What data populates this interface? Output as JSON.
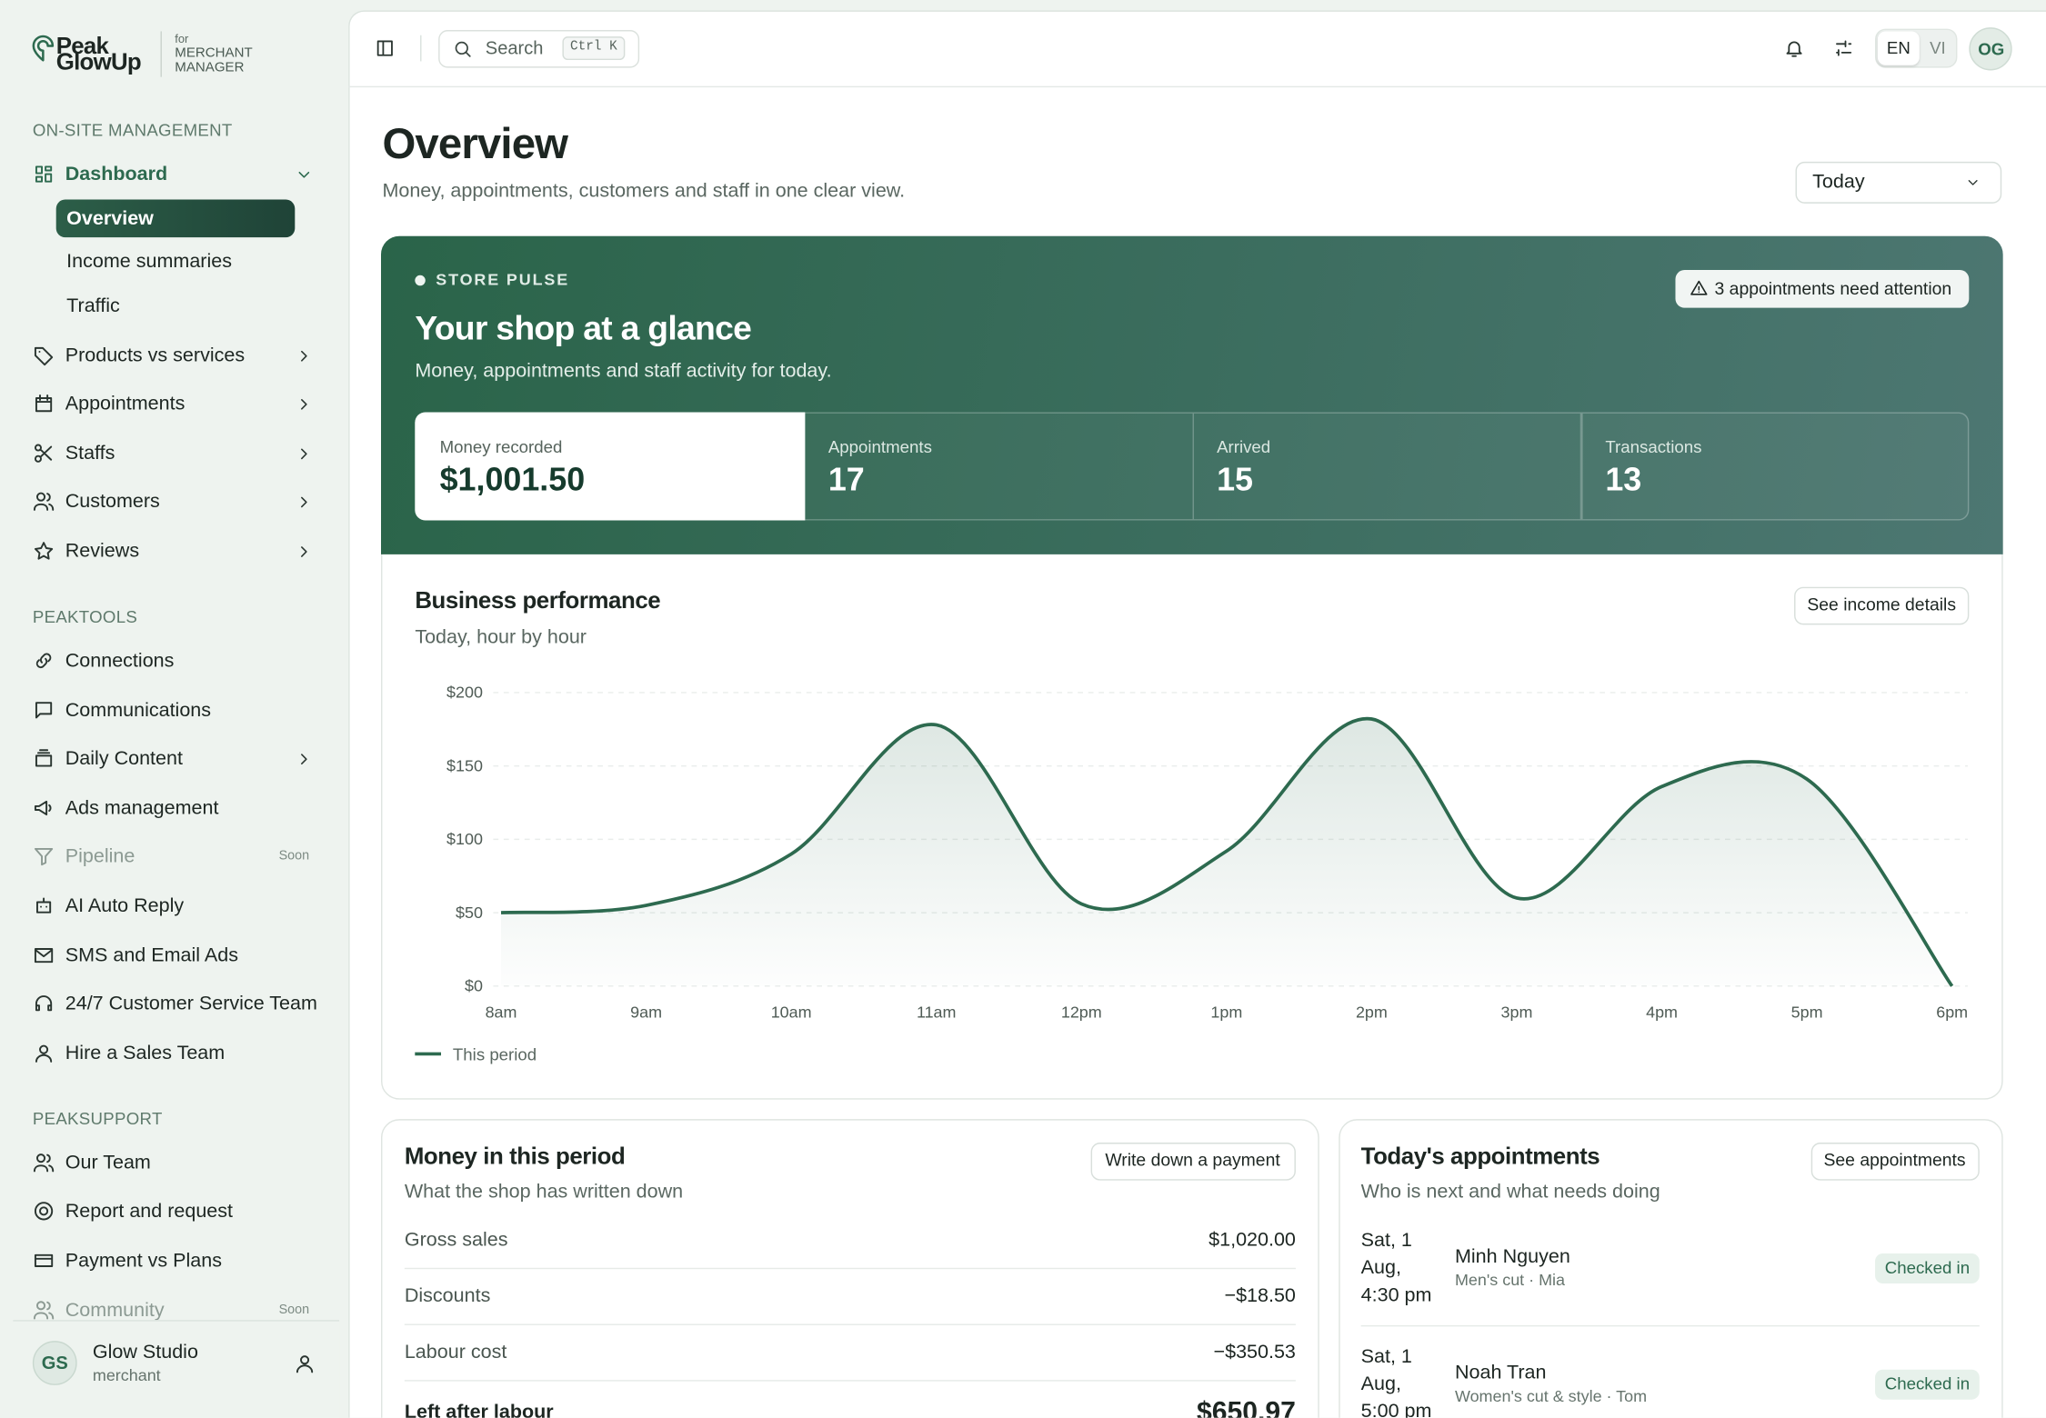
{
  "brand": {
    "line1": "Peak",
    "line2": "GlowUp",
    "for": "for",
    "role_line1": "MERCHANT",
    "role_line2": "MANAGER"
  },
  "sidebar": {
    "sections": [
      {
        "title": "ON-SITE MANAGEMENT",
        "items": [
          {
            "label": "Dashboard",
            "expanded": true,
            "active": true,
            "children": [
              {
                "label": "Overview",
                "active": true
              },
              {
                "label": "Income summaries"
              },
              {
                "label": "Traffic"
              }
            ]
          },
          {
            "label": "Products vs services",
            "expandable": true
          },
          {
            "label": "Appointments",
            "expandable": true
          },
          {
            "label": "Staffs",
            "expandable": true
          },
          {
            "label": "Customers",
            "expandable": true
          },
          {
            "label": "Reviews",
            "expandable": true
          }
        ]
      },
      {
        "title": "PEAKTOOLS",
        "items": [
          {
            "label": "Connections"
          },
          {
            "label": "Communications"
          },
          {
            "label": "Daily Content",
            "expandable": true
          },
          {
            "label": "Ads management"
          },
          {
            "label": "Pipeline",
            "badge": "Soon",
            "disabled": true
          },
          {
            "label": "AI Auto Reply"
          },
          {
            "label": "SMS and Email Ads"
          },
          {
            "label": "24/7 Customer Service Team"
          },
          {
            "label": "Hire a Sales Team"
          }
        ]
      },
      {
        "title": "PEAKSUPPORT",
        "items": [
          {
            "label": "Our Team"
          },
          {
            "label": "Report and request"
          },
          {
            "label": "Payment vs Plans"
          },
          {
            "label": "Community",
            "badge": "Soon",
            "disabled": true
          }
        ]
      }
    ]
  },
  "account": {
    "initials": "GS",
    "name": "Glow Studio",
    "role": "merchant"
  },
  "topbar": {
    "search": "Search",
    "shortcut": "Ctrl K",
    "languages": [
      "EN",
      "VI"
    ],
    "avatar": "OG"
  },
  "header": {
    "title": "Overview",
    "subtitle": "Money, appointments, customers and staff in one clear view.",
    "period": "Today"
  },
  "pulse": {
    "eyebrow": "STORE PULSE",
    "title": "Your shop at a glance",
    "subtitle": "Money, appointments and staff activity for today.",
    "alert": "3 appointments need attention",
    "stats": [
      {
        "label": "Money recorded",
        "value": "$1,001.50"
      },
      {
        "label": "Appointments",
        "value": 17
      },
      {
        "label": "Arrived",
        "value": 15
      },
      {
        "label": "Transactions",
        "value": 13
      }
    ]
  },
  "performance": {
    "action": "See income details"
  },
  "chart_data": {
    "type": "line",
    "title": "Business performance",
    "subtitle": "Today, hour by hour",
    "categories": [
      "8am",
      "9am",
      "10am",
      "11am",
      "12pm",
      "1pm",
      "2pm",
      "3pm",
      "4pm",
      "5pm",
      "6pm"
    ],
    "series": [
      {
        "name": "This period",
        "color": "#2d6a4f",
        "values": [
          50,
          55,
          90,
          178,
          56,
          92,
          182,
          60,
          136,
          141,
          0
        ]
      }
    ],
    "ylim": [
      0,
      200
    ],
    "yticks": [
      {
        "value": 0,
        "label": "$0"
      },
      {
        "value": 50,
        "label": "$50"
      },
      {
        "value": 100,
        "label": "$100"
      },
      {
        "value": 150,
        "label": "$150"
      },
      {
        "value": 200,
        "label": "$200"
      }
    ],
    "grid": true,
    "legend": "bottom-left"
  },
  "money": {
    "title": "Money in this period",
    "subtitle": "What the shop has written down",
    "action": "Write down a payment",
    "rows": [
      {
        "label": "Gross sales",
        "value": "$1,020.00"
      },
      {
        "label": "Discounts",
        "value": "−$18.50"
      },
      {
        "label": "Labour cost",
        "value": "−$350.53"
      },
      {
        "label": "Left after labour",
        "value": "$650.97",
        "strong": true
      }
    ]
  },
  "appointments": {
    "title": "Today's appointments",
    "subtitle": "Who is next and what needs doing",
    "action": "See appointments",
    "items": [
      {
        "when": "Sat, 1 Aug, 4:30 pm",
        "name": "Minh Nguyen",
        "detail": "Men's cut · Mia",
        "status": "Checked in"
      },
      {
        "when": "Sat, 1 Aug, 5:00 pm",
        "name": "Noah Tran",
        "detail": "Women's cut & style · Tom",
        "status": "Checked in"
      }
    ]
  }
}
